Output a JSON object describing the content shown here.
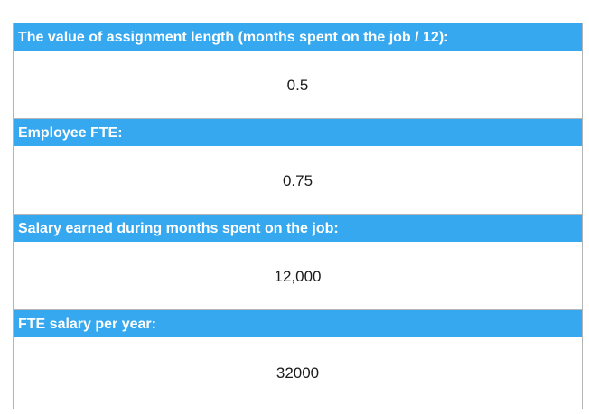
{
  "rows": [
    {
      "label": "The value of assignment length (months spent on the job / 12):",
      "value": "0.5"
    },
    {
      "label": "Employee FTE:",
      "value": "0.75"
    },
    {
      "label": "Salary earned during months spent on the job:",
      "value": "12,000"
    },
    {
      "label": "FTE salary per year:",
      "value": "32000"
    }
  ],
  "colors": {
    "header_bg": "#35a8ef",
    "header_text": "#ffffff",
    "value_text": "#1a1a1a",
    "border": "#b5b5b5"
  }
}
